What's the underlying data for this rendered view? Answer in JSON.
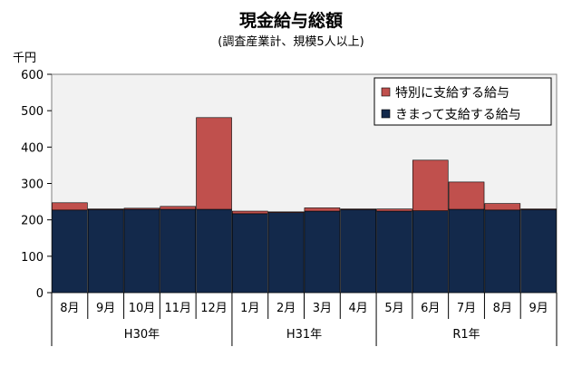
{
  "chart_data": {
    "type": "bar",
    "stacked": true,
    "title": "現金給与総額",
    "subtitle": "(調査産業計、規模5人以上)",
    "ylabel": "千円",
    "ylim": [
      0,
      600
    ],
    "yticks": [
      0,
      100,
      200,
      300,
      400,
      500,
      600
    ],
    "grid": false,
    "categories": [
      "8月",
      "9月",
      "10月",
      "11月",
      "12月",
      "1月",
      "2月",
      "3月",
      "4月",
      "5月",
      "6月",
      "7月",
      "8月",
      "9月"
    ],
    "year_groups": [
      {
        "label": "H30年",
        "start": 0,
        "end": 4
      },
      {
        "label": "H31年",
        "start": 5,
        "end": 8
      },
      {
        "label": "R1年",
        "start": 9,
        "end": 13
      }
    ],
    "series": [
      {
        "name": "きまって支給する給与",
        "color": "#13294b",
        "values": [
          227,
          228,
          229,
          229,
          229,
          217,
          220,
          224,
          228,
          224,
          225,
          229,
          227,
          228
        ]
      },
      {
        "name": "特別に支給する給与",
        "color": "#c0504d",
        "values": [
          20,
          2,
          3,
          8,
          252,
          7,
          2,
          9,
          2,
          6,
          139,
          75,
          18,
          2
        ]
      }
    ],
    "legend": {
      "position": "top-right",
      "order": [
        "特別に支給する給与",
        "きまって支給する給与"
      ]
    }
  }
}
